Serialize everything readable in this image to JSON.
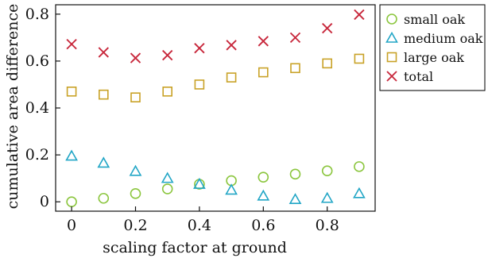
{
  "chart_data": {
    "type": "scatter",
    "title": "",
    "xlabel": "scaling factor at ground",
    "ylabel": "cumulative area difference",
    "xlim": [
      -0.05,
      0.95
    ],
    "ylim": [
      -0.04,
      0.84
    ],
    "xticks": [
      0,
      0.2,
      0.4,
      0.6,
      0.8
    ],
    "xtick_labels": [
      "0",
      "0.2",
      "0.4",
      "0.6",
      "0.8"
    ],
    "yticks": [
      0,
      0.2,
      0.4,
      0.6,
      0.8
    ],
    "ytick_labels": [
      "0",
      "0.2",
      "0.4",
      "0.6",
      "0.8"
    ],
    "grid": false,
    "legend_position": "outside-top-right",
    "x": [
      0,
      0.1,
      0.2,
      0.3,
      0.4,
      0.5,
      0.6,
      0.7,
      0.8,
      0.9
    ],
    "series": [
      {
        "name": "small oak",
        "marker": "circle",
        "color": "#8cc63f",
        "values": [
          0.0,
          0.015,
          0.035,
          0.055,
          0.075,
          0.09,
          0.105,
          0.118,
          0.132,
          0.15
        ]
      },
      {
        "name": "medium oak",
        "marker": "triangle",
        "color": "#22a6c6",
        "values": [
          0.195,
          0.165,
          0.13,
          0.1,
          0.075,
          0.05,
          0.025,
          0.01,
          0.015,
          0.035
        ]
      },
      {
        "name": "large oak",
        "marker": "square",
        "color": "#c9a227",
        "values": [
          0.47,
          0.457,
          0.445,
          0.47,
          0.5,
          0.53,
          0.552,
          0.57,
          0.59,
          0.61
        ]
      },
      {
        "name": "total",
        "marker": "x",
        "color": "#c8283c",
        "values": [
          0.672,
          0.637,
          0.613,
          0.625,
          0.655,
          0.668,
          0.685,
          0.7,
          0.74,
          0.798
        ]
      }
    ]
  }
}
